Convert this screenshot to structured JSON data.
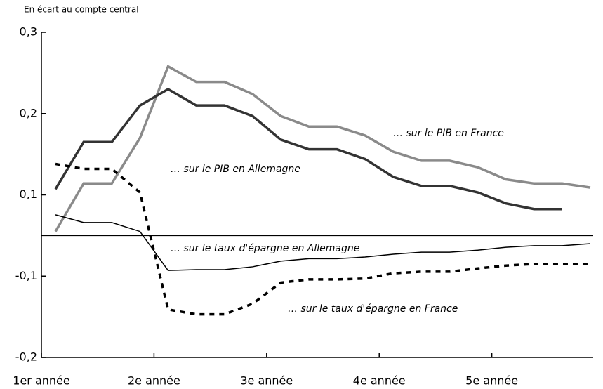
{
  "chart_data": {
    "type": "line",
    "subtitle": "En écart au compte central",
    "x": [
      0.5,
      1.5,
      2.5,
      3.5,
      4.5,
      5.5,
      6.5,
      7.5,
      8.5,
      9.5,
      10.5,
      11.5,
      12.5,
      13.5,
      14.5,
      15.5,
      16.5,
      17.5,
      18.5,
      19.5
    ],
    "xlim": [
      0,
      19.6
    ],
    "xticks": [
      {
        "value": 0,
        "label": "1er année"
      },
      {
        "value": 4,
        "label": "2e année"
      },
      {
        "value": 8,
        "label": "3e année"
      },
      {
        "value": 12,
        "label": "4e année"
      },
      {
        "value": 16,
        "label": "5e année"
      }
    ],
    "ylim": [
      -0.2,
      0.3
    ],
    "yticks": [
      {
        "value": -0.2,
        "label": "-0,2"
      },
      {
        "value": -0.1,
        "label": "-0,1"
      },
      {
        "value": 0.1,
        "label": "0,1"
      },
      {
        "value": 0.2,
        "label": "0,2"
      },
      {
        "value": 0.3,
        "label": "0,3"
      }
    ],
    "series": [
      {
        "name": "… sur le PIB en France",
        "color": "#8a8a8a",
        "style": "solid",
        "width": 3.5,
        "values": [
          0.01,
          0.114,
          0.114,
          0.17,
          0.258,
          0.239,
          0.239,
          0.224,
          0.197,
          0.184,
          0.184,
          0.173,
          0.153,
          0.142,
          0.142,
          0.134,
          0.119,
          0.114,
          0.114,
          0.109
        ]
      },
      {
        "name": "… sur le PIB en Allemagne",
        "color": "#333333",
        "style": "solid",
        "width": 3.5,
        "values": [
          0.107,
          0.165,
          0.165,
          0.21,
          0.23,
          0.21,
          0.21,
          0.197,
          0.168,
          0.156,
          0.156,
          0.144,
          0.122,
          0.111,
          0.111,
          0.103,
          0.079,
          0.065,
          0.065,
          null
        ]
      },
      {
        "name": "… sur le taux d'épargne en Allemagne",
        "color": "#000000",
        "style": "solid",
        "width": 1.5,
        "values": [
          0.051,
          0.032,
          0.032,
          0.01,
          -0.086,
          -0.084,
          -0.084,
          -0.077,
          -0.063,
          -0.057,
          -0.057,
          -0.053,
          -0.046,
          -0.041,
          -0.041,
          -0.036,
          -0.029,
          -0.025,
          -0.025,
          -0.02
        ]
      },
      {
        "name": "… sur le taux d'épargne en France",
        "color": "#000000",
        "style": "dashed",
        "width": 3.5,
        "values": [
          0.138,
          0.132,
          0.132,
          0.103,
          -0.141,
          -0.147,
          -0.147,
          -0.134,
          -0.108,
          -0.104,
          -0.104,
          -0.103,
          -0.093,
          -0.089,
          -0.089,
          -0.081,
          -0.074,
          -0.07,
          -0.07,
          -0.07
        ]
      }
    ]
  }
}
